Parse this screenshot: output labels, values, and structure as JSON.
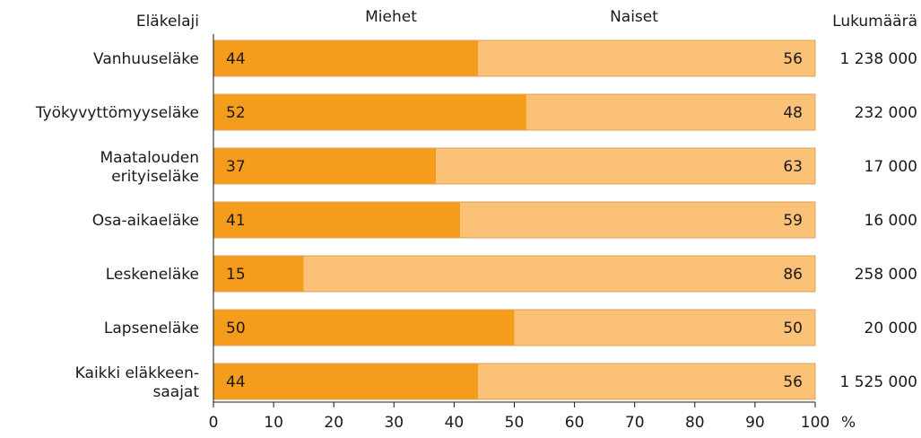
{
  "chart_data": {
    "type": "bar",
    "orientation": "horizontal",
    "stacked": true,
    "header_left": "Eläkelaji",
    "header_right": "Lukumäärä",
    "categories": [
      [
        "Vanhuuseläke"
      ],
      [
        "Työkyvyttömyyseläke"
      ],
      [
        "Maatalouden",
        "erityiseläke"
      ],
      [
        "Osa-aikaeläke"
      ],
      [
        "Leskeneläke"
      ],
      [
        "Lapseneläke"
      ],
      [
        "Kaikki eläkkeen-",
        "saajat"
      ]
    ],
    "series": [
      {
        "name": "Miehet",
        "values": [
          44,
          52,
          37,
          41,
          15,
          50,
          44
        ],
        "color": "#f59c1d"
      },
      {
        "name": "Naiset",
        "values": [
          56,
          48,
          63,
          59,
          86,
          50,
          56
        ],
        "color": "#fbc277"
      }
    ],
    "counts": [
      "1 238 000",
      "232 000",
      "17 000",
      "16 000",
      "258 000",
      "20 000",
      "1 525 000"
    ],
    "xlim": [
      0,
      100
    ],
    "xticks": [
      "0",
      "10",
      "20",
      "30",
      "40",
      "50",
      "60",
      "70",
      "80",
      "90",
      "100"
    ],
    "x_unit": "%",
    "legend_placement": "top",
    "grid": false
  }
}
